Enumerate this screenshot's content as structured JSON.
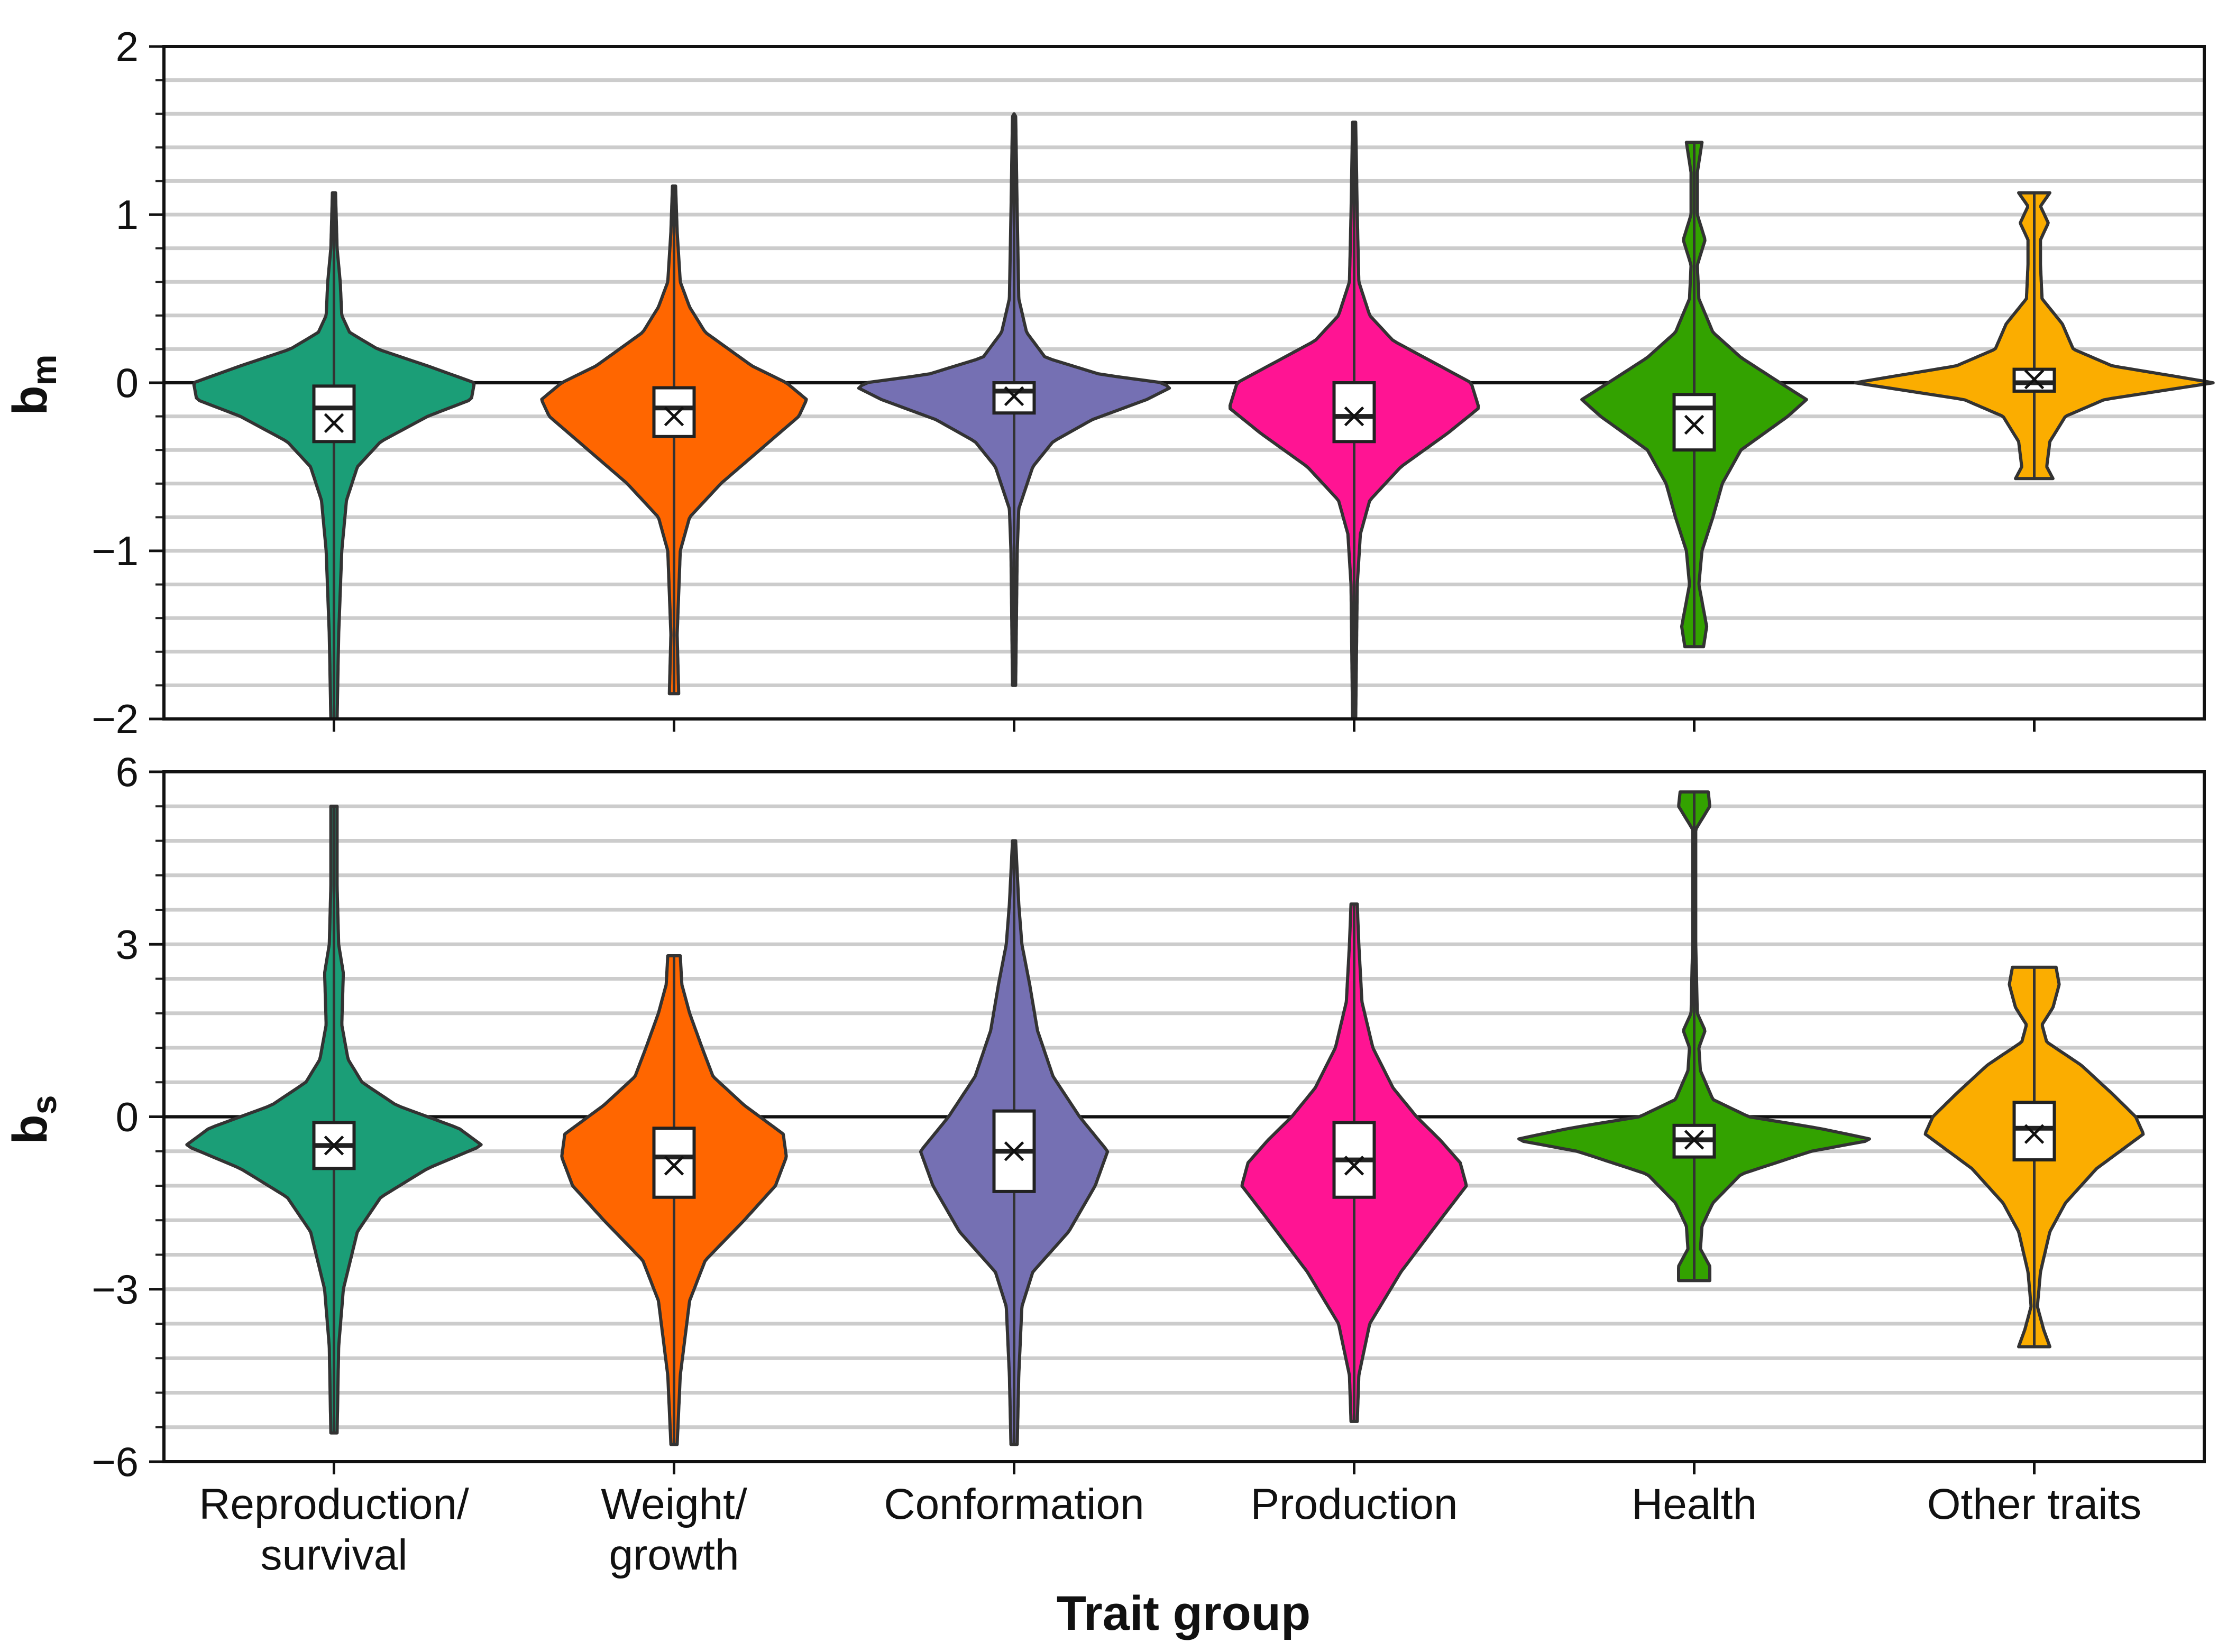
{
  "chart_data": [
    {
      "type": "violin",
      "panel": "top",
      "ylabel": "b",
      "ylabel_sub": "m",
      "ylim": [
        -2,
        2
      ],
      "yticks": [
        -2,
        -1,
        0,
        1,
        2
      ],
      "ytick_labels": [
        "−2",
        "−1",
        "0",
        "1",
        "2"
      ],
      "minor_grid_step": 0.2,
      "reference_line": 0,
      "categories": [
        "Reproduction/ survival",
        "Weight/ growth",
        "Conformation",
        "Production",
        "Health",
        "Other traits"
      ],
      "series": [
        {
          "name": "Reproduction/ survival",
          "color": "#1b9e77",
          "min": -2.0,
          "max": 1.13,
          "q1": -0.35,
          "median": -0.15,
          "q3": -0.02,
          "mean": -0.24,
          "density": [
            [
              -2.0,
              0.02
            ],
            [
              -1.5,
              0.03
            ],
            [
              -1.0,
              0.05
            ],
            [
              -0.7,
              0.08
            ],
            [
              -0.5,
              0.15
            ],
            [
              -0.35,
              0.3
            ],
            [
              -0.2,
              0.6
            ],
            [
              -0.1,
              0.88
            ],
            [
              0.0,
              0.9
            ],
            [
              0.1,
              0.6
            ],
            [
              0.2,
              0.28
            ],
            [
              0.3,
              0.1
            ],
            [
              0.4,
              0.05
            ],
            [
              0.6,
              0.04
            ],
            [
              0.8,
              0.02
            ],
            [
              1.13,
              0.01
            ]
          ]
        },
        {
          "name": "Weight/ growth",
          "color": "#ff6600",
          "min": -1.85,
          "max": 1.17,
          "q1": -0.32,
          "median": -0.15,
          "q3": -0.03,
          "mean": -0.2,
          "density": [
            [
              -1.85,
              0.03
            ],
            [
              -1.5,
              0.02
            ],
            [
              -1.0,
              0.04
            ],
            [
              -0.8,
              0.1
            ],
            [
              -0.6,
              0.3
            ],
            [
              -0.4,
              0.55
            ],
            [
              -0.2,
              0.8
            ],
            [
              -0.1,
              0.85
            ],
            [
              0.0,
              0.72
            ],
            [
              0.1,
              0.5
            ],
            [
              0.3,
              0.2
            ],
            [
              0.45,
              0.1
            ],
            [
              0.6,
              0.04
            ],
            [
              0.9,
              0.02
            ],
            [
              1.17,
              0.01
            ]
          ]
        },
        {
          "name": "Conformation",
          "color": "#7570b3",
          "min": -1.8,
          "max": 1.6,
          "q1": -0.18,
          "median": -0.05,
          "q3": 0.0,
          "mean": -0.08,
          "density": [
            [
              -1.8,
              0.01
            ],
            [
              -1.0,
              0.02
            ],
            [
              -0.75,
              0.03
            ],
            [
              -0.5,
              0.12
            ],
            [
              -0.35,
              0.25
            ],
            [
              -0.22,
              0.5
            ],
            [
              -0.1,
              0.85
            ],
            [
              -0.03,
              1.0
            ],
            [
              0.0,
              0.95
            ],
            [
              0.05,
              0.55
            ],
            [
              0.15,
              0.2
            ],
            [
              0.3,
              0.08
            ],
            [
              0.5,
              0.03
            ],
            [
              1.0,
              0.02
            ],
            [
              1.6,
              0.01
            ]
          ]
        },
        {
          "name": "Production",
          "color": "#ff1493",
          "min": -2.0,
          "max": 1.55,
          "q1": -0.35,
          "median": -0.2,
          "q3": 0.0,
          "mean": -0.2,
          "density": [
            [
              -2.0,
              0.01
            ],
            [
              -1.2,
              0.02
            ],
            [
              -0.9,
              0.04
            ],
            [
              -0.7,
              0.1
            ],
            [
              -0.5,
              0.3
            ],
            [
              -0.3,
              0.6
            ],
            [
              -0.15,
              0.8
            ],
            [
              0.0,
              0.75
            ],
            [
              0.1,
              0.55
            ],
            [
              0.25,
              0.25
            ],
            [
              0.4,
              0.1
            ],
            [
              0.6,
              0.03
            ],
            [
              1.0,
              0.02
            ],
            [
              1.55,
              0.01
            ]
          ]
        },
        {
          "name": "Health",
          "color": "#33a200",
          "min": -1.57,
          "max": 1.43,
          "q1": -0.4,
          "median": -0.15,
          "q3": -0.07,
          "mean": -0.25,
          "density": [
            [
              -1.57,
              0.06
            ],
            [
              -1.45,
              0.08
            ],
            [
              -1.2,
              0.03
            ],
            [
              -1.0,
              0.05
            ],
            [
              -0.8,
              0.12
            ],
            [
              -0.6,
              0.18
            ],
            [
              -0.4,
              0.3
            ],
            [
              -0.2,
              0.6
            ],
            [
              -0.1,
              0.72
            ],
            [
              0.0,
              0.55
            ],
            [
              0.15,
              0.3
            ],
            [
              0.3,
              0.12
            ],
            [
              0.5,
              0.03
            ],
            [
              0.7,
              0.02
            ],
            [
              0.85,
              0.07
            ],
            [
              1.0,
              0.02
            ],
            [
              1.25,
              0.02
            ],
            [
              1.43,
              0.05
            ]
          ]
        },
        {
          "name": "Other traits",
          "color": "#fbad00",
          "min": -0.57,
          "max": 1.13,
          "q1": -0.05,
          "median": 0.0,
          "q3": 0.08,
          "mean": 0.02,
          "density": [
            [
              -0.57,
              0.12
            ],
            [
              -0.5,
              0.08
            ],
            [
              -0.35,
              0.1
            ],
            [
              -0.2,
              0.2
            ],
            [
              -0.1,
              0.45
            ],
            [
              0.0,
              1.15
            ],
            [
              0.1,
              0.5
            ],
            [
              0.2,
              0.25
            ],
            [
              0.35,
              0.18
            ],
            [
              0.5,
              0.05
            ],
            [
              0.7,
              0.04
            ],
            [
              0.85,
              0.04
            ],
            [
              0.95,
              0.09
            ],
            [
              1.05,
              0.04
            ],
            [
              1.13,
              0.1
            ]
          ]
        }
      ]
    },
    {
      "type": "violin",
      "panel": "bottom",
      "ylabel": "b",
      "ylabel_sub": "s",
      "ylim": [
        -6,
        6
      ],
      "yticks": [
        -6,
        -3,
        0,
        3,
        6
      ],
      "ytick_labels": [
        "−6",
        "−3",
        "0",
        "3",
        "6"
      ],
      "minor_grid_step": 0.6,
      "reference_line": 0,
      "xlabel": "Trait group",
      "categories": [
        "Reproduction/ survival",
        "Weight/ growth",
        "Conformation",
        "Production",
        "Health",
        "Other traits"
      ],
      "series": [
        {
          "name": "Reproduction/ survival",
          "color": "#1b9e77",
          "min": -5.5,
          "max": 5.4,
          "q1": -0.9,
          "median": -0.5,
          "q3": -0.1,
          "mean": -0.5,
          "density": [
            [
              -5.5,
              0.02
            ],
            [
              -4.0,
              0.03
            ],
            [
              -3.0,
              0.06
            ],
            [
              -2.0,
              0.15
            ],
            [
              -1.4,
              0.3
            ],
            [
              -0.9,
              0.6
            ],
            [
              -0.5,
              0.95
            ],
            [
              -0.2,
              0.8
            ],
            [
              0.2,
              0.4
            ],
            [
              0.6,
              0.18
            ],
            [
              1.0,
              0.09
            ],
            [
              1.6,
              0.05
            ],
            [
              2.5,
              0.06
            ],
            [
              3.0,
              0.03
            ],
            [
              4.0,
              0.02
            ],
            [
              5.4,
              0.02
            ]
          ]
        },
        {
          "name": "Weight/ growth",
          "color": "#ff6600",
          "min": -5.7,
          "max": 2.8,
          "q1": -1.4,
          "median": -0.7,
          "q3": -0.2,
          "mean": -0.85,
          "density": [
            [
              -5.7,
              0.02
            ],
            [
              -4.5,
              0.04
            ],
            [
              -3.2,
              0.1
            ],
            [
              -2.5,
              0.2
            ],
            [
              -1.8,
              0.45
            ],
            [
              -1.2,
              0.65
            ],
            [
              -0.7,
              0.72
            ],
            [
              -0.3,
              0.7
            ],
            [
              0.2,
              0.45
            ],
            [
              0.7,
              0.25
            ],
            [
              1.2,
              0.18
            ],
            [
              1.8,
              0.1
            ],
            [
              2.3,
              0.05
            ],
            [
              2.8,
              0.04
            ]
          ]
        },
        {
          "name": "Conformation",
          "color": "#7570b3",
          "min": -5.7,
          "max": 4.8,
          "q1": -1.3,
          "median": -0.6,
          "q3": 0.1,
          "mean": -0.6,
          "density": [
            [
              -5.7,
              0.02
            ],
            [
              -4.5,
              0.03
            ],
            [
              -3.3,
              0.05
            ],
            [
              -2.7,
              0.12
            ],
            [
              -2.0,
              0.35
            ],
            [
              -1.2,
              0.52
            ],
            [
              -0.6,
              0.6
            ],
            [
              0.0,
              0.42
            ],
            [
              0.7,
              0.25
            ],
            [
              1.5,
              0.15
            ],
            [
              2.3,
              0.1
            ],
            [
              3.0,
              0.05
            ],
            [
              3.7,
              0.03
            ],
            [
              4.8,
              0.01
            ]
          ]
        },
        {
          "name": "Production",
          "color": "#ff1493",
          "min": -5.3,
          "max": 3.7,
          "q1": -1.4,
          "median": -0.75,
          "q3": -0.1,
          "mean": -0.85,
          "density": [
            [
              -5.3,
              0.02
            ],
            [
              -4.5,
              0.03
            ],
            [
              -3.6,
              0.1
            ],
            [
              -2.7,
              0.3
            ],
            [
              -1.8,
              0.55
            ],
            [
              -1.2,
              0.72
            ],
            [
              -0.8,
              0.68
            ],
            [
              -0.4,
              0.55
            ],
            [
              0.0,
              0.4
            ],
            [
              0.5,
              0.25
            ],
            [
              1.2,
              0.12
            ],
            [
              2.0,
              0.05
            ],
            [
              3.0,
              0.03
            ],
            [
              3.7,
              0.02
            ]
          ]
        },
        {
          "name": "Health",
          "color": "#33a200",
          "min": -2.85,
          "max": 5.65,
          "q1": -0.7,
          "median": -0.4,
          "q3": -0.15,
          "mean": -0.4,
          "density": [
            [
              -2.85,
              0.1
            ],
            [
              -2.6,
              0.1
            ],
            [
              -2.3,
              0.04
            ],
            [
              -1.9,
              0.05
            ],
            [
              -1.5,
              0.12
            ],
            [
              -1.0,
              0.3
            ],
            [
              -0.6,
              0.75
            ],
            [
              -0.4,
              1.15
            ],
            [
              -0.2,
              0.8
            ],
            [
              0.0,
              0.35
            ],
            [
              0.3,
              0.12
            ],
            [
              0.8,
              0.04
            ],
            [
              1.2,
              0.03
            ],
            [
              1.5,
              0.07
            ],
            [
              1.8,
              0.02
            ],
            [
              3.0,
              0.01
            ],
            [
              5.0,
              0.01
            ],
            [
              5.4,
              0.1
            ],
            [
              5.65,
              0.09
            ]
          ]
        },
        {
          "name": "Other traits",
          "color": "#fbad00",
          "min": -4.0,
          "max": 2.6,
          "q1": -0.75,
          "median": -0.2,
          "q3": 0.25,
          "mean": -0.3,
          "density": [
            [
              -4.0,
              0.1
            ],
            [
              -3.7,
              0.06
            ],
            [
              -3.3,
              0.02
            ],
            [
              -2.7,
              0.04
            ],
            [
              -2.0,
              0.1
            ],
            [
              -1.5,
              0.2
            ],
            [
              -0.9,
              0.4
            ],
            [
              -0.3,
              0.7
            ],
            [
              0.0,
              0.65
            ],
            [
              0.4,
              0.5
            ],
            [
              0.9,
              0.3
            ],
            [
              1.3,
              0.08
            ],
            [
              1.6,
              0.05
            ],
            [
              1.9,
              0.12
            ],
            [
              2.3,
              0.16
            ],
            [
              2.6,
              0.14
            ]
          ]
        }
      ]
    }
  ]
}
